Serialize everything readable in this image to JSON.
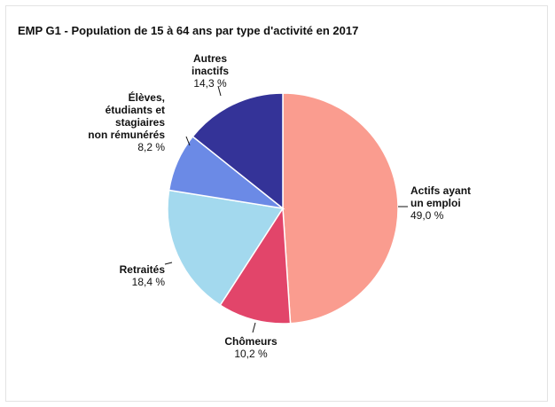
{
  "chart_data": {
    "type": "pie",
    "title": "EMP G1 - Population de 15 à 64 ans par type d'activité en 2017",
    "slices": [
      {
        "name_lines": [
          "Actifs ayant",
          "un emploi"
        ],
        "value": 49.0,
        "value_label": "49,0 %",
        "color": "#fa9c8f"
      },
      {
        "name_lines": [
          "Chômeurs"
        ],
        "value": 10.2,
        "value_label": "10,2 %",
        "color": "#e2456a"
      },
      {
        "name_lines": [
          "Retraités"
        ],
        "value": 18.4,
        "value_label": "18,4 %",
        "color": "#a3d9ee"
      },
      {
        "name_lines": [
          "Élèves,",
          "étudiants et",
          "stagiaires",
          "non rémunérés"
        ],
        "value": 8.2,
        "value_label": "8,2 %",
        "color": "#6b8ae6"
      },
      {
        "name_lines": [
          "Autres",
          "inactifs"
        ],
        "value": 14.3,
        "value_label": "14,3 %",
        "color": "#343398"
      }
    ]
  }
}
